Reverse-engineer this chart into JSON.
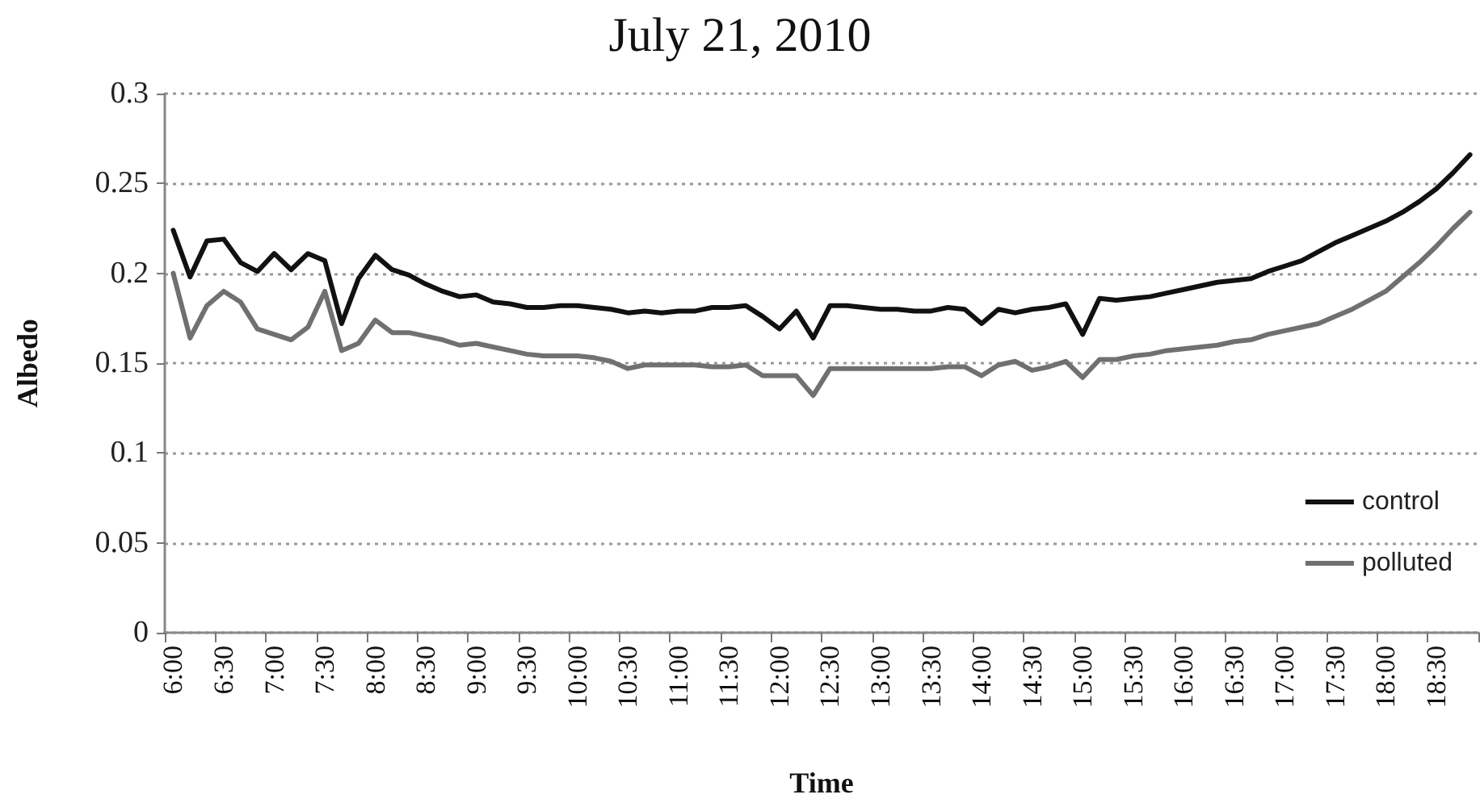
{
  "chart_data": {
    "type": "line",
    "title": "July 21, 2010",
    "xlabel": "Time",
    "ylabel": "Albedo",
    "categories": [
      "6:00",
      null,
      null,
      "6:30",
      null,
      null,
      "7:00",
      null,
      null,
      "7:30",
      null,
      null,
      "8:00",
      null,
      null,
      "8:30",
      null,
      null,
      "9:00",
      null,
      null,
      "9:30",
      null,
      null,
      "10:00",
      null,
      null,
      "10:30",
      null,
      null,
      "11:00",
      null,
      null,
      "11:30",
      null,
      null,
      "12:00",
      null,
      null,
      "12:30",
      null,
      null,
      "13:00",
      null,
      null,
      "13:30",
      null,
      null,
      "14:00",
      null,
      null,
      "14:30",
      null,
      null,
      "15:00",
      null,
      null,
      "15:30",
      null,
      null,
      "16:00",
      null,
      null,
      "16:30",
      null,
      null,
      "17:00",
      null,
      null,
      "17:30",
      null,
      null,
      "18:00",
      null,
      null,
      "18:30",
      null,
      null
    ],
    "series": [
      {
        "name": "control",
        "color": "#111111",
        "values": [
          0.224,
          0.198,
          0.218,
          0.219,
          0.206,
          0.201,
          0.211,
          0.202,
          0.211,
          0.207,
          0.172,
          0.197,
          0.21,
          0.202,
          0.199,
          0.194,
          0.19,
          0.187,
          0.188,
          0.184,
          0.183,
          0.181,
          0.181,
          0.182,
          0.182,
          0.181,
          0.18,
          0.178,
          0.179,
          0.178,
          0.179,
          0.179,
          0.181,
          0.181,
          0.182,
          0.176,
          0.169,
          0.179,
          0.164,
          0.182,
          0.182,
          0.181,
          0.18,
          0.18,
          0.179,
          0.179,
          0.181,
          0.18,
          0.172,
          0.18,
          0.178,
          0.18,
          0.181,
          0.183,
          0.166,
          0.186,
          0.185,
          0.186,
          0.187,
          0.189,
          0.191,
          0.193,
          0.195,
          0.196,
          0.197,
          0.201,
          0.204,
          0.207,
          0.212,
          0.217,
          0.221,
          0.225,
          0.229,
          0.234,
          0.24,
          0.247,
          0.256,
          0.266
        ]
      },
      {
        "name": "polluted",
        "color": "#707070",
        "values": [
          0.2,
          0.164,
          0.182,
          0.19,
          0.184,
          0.169,
          0.166,
          0.163,
          0.17,
          0.19,
          0.157,
          0.161,
          0.174,
          0.167,
          0.167,
          0.165,
          0.163,
          0.16,
          0.161,
          0.159,
          0.157,
          0.155,
          0.154,
          0.154,
          0.154,
          0.153,
          0.151,
          0.147,
          0.149,
          0.149,
          0.149,
          0.149,
          0.148,
          0.148,
          0.149,
          0.143,
          0.143,
          0.143,
          0.132,
          0.147,
          0.147,
          0.147,
          0.147,
          0.147,
          0.147,
          0.147,
          0.148,
          0.148,
          0.143,
          0.149,
          0.151,
          0.146,
          0.148,
          0.151,
          0.142,
          0.152,
          0.152,
          0.154,
          0.155,
          0.157,
          0.158,
          0.159,
          0.16,
          0.162,
          0.163,
          0.166,
          0.168,
          0.17,
          0.172,
          0.176,
          0.18,
          0.185,
          0.19,
          0.198,
          0.206,
          0.215,
          0.225,
          0.234
        ]
      }
    ],
    "ylim": [
      0,
      0.3
    ],
    "yticks": [
      0,
      0.05,
      0.1,
      0.15,
      0.2,
      0.25,
      0.3
    ],
    "grid": "y",
    "legend": "bottom right",
    "marker": "none",
    "line_style": "solid"
  }
}
